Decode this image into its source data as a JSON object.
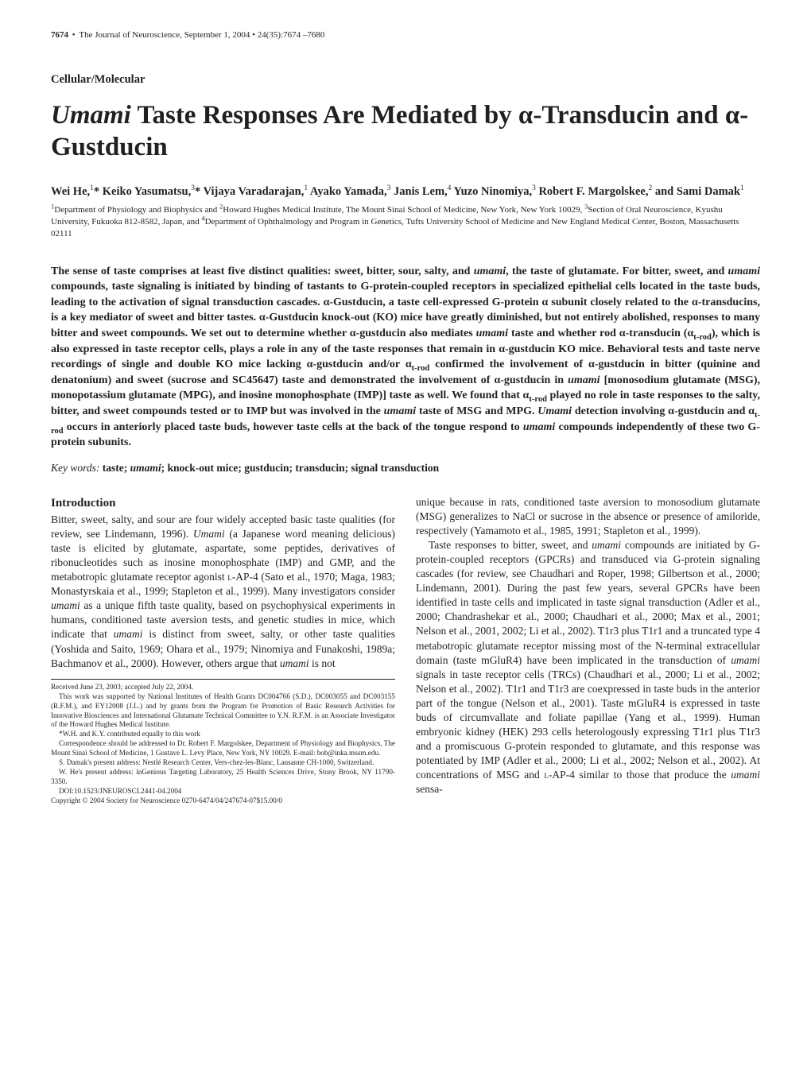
{
  "colors": {
    "text": "#231f20",
    "background": "#ffffff"
  },
  "typography": {
    "body_family": "Minion Pro, Times New Roman, Georgia, serif",
    "title_size_pt": 33,
    "section_label_size_pt": 14.5,
    "authors_size_pt": 14.5,
    "affiliations_size_pt": 11,
    "abstract_size_pt": 14,
    "keywords_size_pt": 13.5,
    "body_size_pt": 13.5,
    "footnote_size_pt": 9.2,
    "running_head_size_pt": 11
  },
  "running_head": {
    "pagenum": "7674",
    "sep": " • ",
    "journal": "The Journal of Neuroscience, September 1, 2004",
    "issue": " • 24(35):7674 –7680"
  },
  "section_label": "Cellular/Molecular",
  "title_prefix_italic": "Umami",
  "title_rest": " Taste Responses Are Mediated by α-Transducin and α-Gustducin",
  "authors_html": "Wei He,<sup>1</sup>* Keiko Yasumatsu,<sup>3</sup>* Vijaya Varadarajan,<sup>1</sup> Ayako Yamada,<sup>3</sup> Janis Lem,<sup>4</sup> Yuzo Ninomiya,<sup>3</sup> Robert F. Margolskee,<sup>2</sup> and Sami Damak<sup>1</sup>",
  "affiliations_html": "<sup>1</sup>Department of Physiology and Biophysics and <sup>2</sup>Howard Hughes Medical Institute, The Mount Sinai School of Medicine, New York, New York 10029, <sup>3</sup>Section of Oral Neuroscience, Kyushu University, Fukuoka 812-8582, Japan, and <sup>4</sup>Department of Ophthalmology and Program in Genetics, Tufts University School of Medicine and New England Medical Center, Boston, Massachusetts 02111",
  "abstract_html": "The sense of taste comprises at least five distinct qualities: sweet, bitter, sour, salty, and <i>umami</i>, the taste of glutamate. For bitter, sweet, and <i>umami</i> compounds, taste signaling is initiated by binding of tastants to G-protein-coupled receptors in specialized epithelial cells located in the taste buds, leading to the activation of signal transduction cascades. α-Gustducin, a taste cell-expressed G-protein α subunit closely related to the α-transducins, is a key mediator of sweet and bitter tastes. α-Gustducin knock-out (KO) mice have greatly diminished, but not entirely abolished, responses to many bitter and sweet compounds. We set out to determine whether α-gustducin also mediates <i>umami</i> taste and whether rod α-transducin (α<sub>t-rod</sub>), which is also expressed in taste receptor cells, plays a role in any of the taste responses that remain in α-gustducin KO mice. Behavioral tests and taste nerve recordings of single and double KO mice lacking α-gustducin and/or α<sub>t-rod</sub> confirmed the involvement of α-gustducin in bitter (quinine and denatonium) and sweet (sucrose and SC45647) taste and demonstrated the involvement of α-gustducin in <i>umami</i> [monosodium glutamate (MSG), monopotassium glutamate (MPG), and inosine monophosphate (IMP)] taste as well. We found that α<sub>t-rod</sub> played no role in taste responses to the salty, bitter, and sweet compounds tested or to IMP but was involved in the <i>umami</i> taste of MSG and MPG. <i>Umami</i> detection involving α-gustducin and α<sub>t-rod</sub> occurs in anteriorly placed taste buds, however taste cells at the back of the tongue respond to <i>umami</i> compounds independently of these two G-protein subunits.",
  "keywords": {
    "label": "Key words:",
    "content_html": " taste; <i>umami</i>; knock-out mice; gustducin; transducin; signal transduction"
  },
  "introduction_heading": "Introduction",
  "intro_left_html": "Bitter, sweet, salty, and sour are four widely accepted basic taste qualities (for review, see Lindemann, 1996). <i>Umami</i> (a Japanese word meaning delicious) taste is elicited by glutamate, aspartate, some peptides, derivatives of ribonucleotides such as inosine monophosphate (IMP) and GMP, and the metabotropic glutamate receptor agonist <span class=\"smallcaps\">l</span>-AP-4 (Sato et al., 1970; Maga, 1983; Monastyrskaia et al., 1999; Stapleton et al., 1999). Many investigators consider <i>umami</i> as a unique fifth taste quality, based on psychophysical experiments in humans, conditioned taste aversion tests, and genetic studies in mice, which indicate that <i>umami</i> is distinct from sweet, salty, or other taste qualities (Yoshida and Saito, 1969; Ohara et al., 1979; Ninomiya and Funakoshi, 1989a; Bachmanov et al., 2000). However, others argue that <i>umami</i> is not",
  "intro_right_p1_html": "unique because in rats, conditioned taste aversion to monosodium glutamate (MSG) generalizes to NaCl or sucrose in the absence or presence of amiloride, respectively (Yamamoto et al., 1985, 1991; Stapleton et al., 1999).",
  "intro_right_p2_html": "Taste responses to bitter, sweet, and <i>umami</i> compounds are initiated by G-protein-coupled receptors (GPCRs) and transduced via G-protein signaling cascades (for review, see Chaudhari and Roper, 1998; Gilbertson et al., 2000; Lindemann, 2001). During the past few years, several GPCRs have been identified in taste cells and implicated in taste signal transduction (Adler et al., 2000; Chandrashekar et al., 2000; Chaudhari et al., 2000; Max et al., 2001; Nelson et al., 2001, 2002; Li et al., 2002). T1r3 plus T1r1 and a truncated type 4 metabotropic glutamate receptor missing most of the N-terminal extracellular domain (taste mGluR4) have been implicated in the transduction of <i>umami</i> signals in taste receptor cells (TRCs) (Chaudhari et al., 2000; Li et al., 2002; Nelson et al., 2002). T1r1 and T1r3 are coexpressed in taste buds in the anterior part of the tongue (Nelson et al., 2001). Taste mGluR4 is expressed in taste buds of circumvallate and foliate papillae (Yang et al., 1999). Human embryonic kidney (HEK) 293 cells heterologously expressing T1r1 plus T1r3 and a promiscuous G-protein responded to glutamate, and this response was potentiated by IMP (Adler et al., 2000; Li et al., 2002; Nelson et al., 2002). At concentrations of MSG and <span class=\"smallcaps\">l</span>-AP-4 similar to those that produce the <i>umami</i> sensa-",
  "footnotes": {
    "received": "Received June 23, 2003; accepted July 22, 2004.",
    "funding": "This work was supported by National Institutes of Health Grants DC004766 (S.D.), DC003055 and DC003155 (R.F.M.), and EY12008 (J.L.) and by grants from the Program for Promotion of Basic Research Activities for Innovative Biosciences and International Glutamate Technical Committee to Y.N. R.F.M. is an Associate Investigator of the Howard Hughes Medical Institute.",
    "equal": "*W.H. and K.Y. contributed equally to this work",
    "correspondence": "Correspondence should be addressed to Dr. Robert F. Margolskee, Department of Physiology and Biophysics, The Mount Sinai School of Medicine, 1 Gustave L. Levy Place, New York, NY 10029. E-mail: bob@inka.mssm.edu.",
    "damak_addr": "S. Damak's present address: Nestlé Research Center, Vers-chez-les-Blanc, Lausanne CH-1000, Switzerland.",
    "he_addr": "W. He's present address: inGenious Targeting Laboratory, 25 Health Sciences Drive, Stony Brook, NY 11790-3350.",
    "doi": "DOI:10.1523/JNEUROSCI.2441-04.2004",
    "copyright": "Copyright © 2004 Society for Neuroscience    0270-6474/04/247674-07$15.00/0"
  }
}
